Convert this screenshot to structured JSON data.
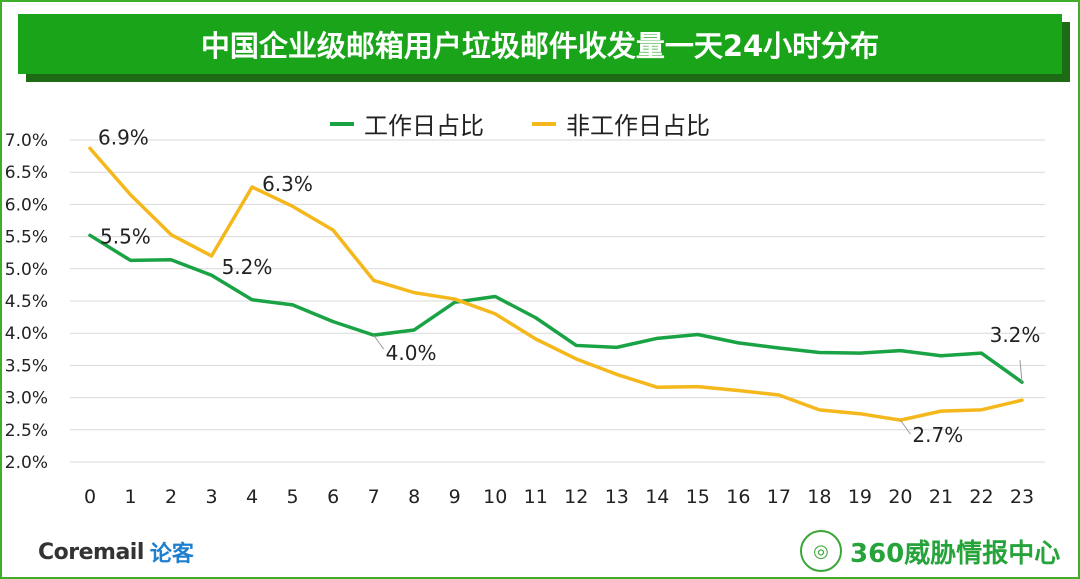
{
  "title": "中国企业级邮箱用户垃圾邮件收发量一天24小时分布",
  "chart_data": {
    "type": "line",
    "x": [
      0,
      1,
      2,
      3,
      4,
      5,
      6,
      7,
      8,
      9,
      10,
      11,
      12,
      13,
      14,
      15,
      16,
      17,
      18,
      19,
      20,
      21,
      22,
      23
    ],
    "ylim": [
      2.0,
      7.0
    ],
    "yticks": [
      "7.0%",
      "6.5%",
      "6.0%",
      "5.5%",
      "5.0%",
      "4.5%",
      "4.0%",
      "3.5%",
      "3.0%",
      "2.5%",
      "2.0%"
    ],
    "grid": true,
    "legend_position": "top",
    "series": [
      {
        "name": "工作日占比",
        "color": "#1aa344",
        "values": [
          5.52,
          5.13,
          5.14,
          4.9,
          4.52,
          4.44,
          4.18,
          3.97,
          4.05,
          4.48,
          4.57,
          4.24,
          3.81,
          3.78,
          3.92,
          3.98,
          3.85,
          3.77,
          3.7,
          3.69,
          3.73,
          3.65,
          3.69,
          3.24
        ]
      },
      {
        "name": "非工作日占比",
        "color": "#f5b81c",
        "values": [
          6.87,
          6.15,
          5.53,
          5.2,
          6.27,
          5.97,
          5.6,
          4.82,
          4.63,
          4.53,
          4.3,
          3.91,
          3.6,
          3.36,
          3.16,
          3.17,
          3.11,
          3.04,
          2.81,
          2.75,
          2.65,
          2.79,
          2.81,
          2.96
        ]
      }
    ],
    "annotations": [
      {
        "series": 1,
        "x": 0,
        "text": "6.9%"
      },
      {
        "series": 0,
        "x": 0,
        "text": "5.5%"
      },
      {
        "series": 1,
        "x": 3,
        "text": "5.2%"
      },
      {
        "series": 1,
        "x": 4,
        "text": "6.3%"
      },
      {
        "series": 0,
        "x": 7,
        "text": "4.0%"
      },
      {
        "series": 1,
        "x": 20,
        "text": "2.7%"
      },
      {
        "series": 0,
        "x": 23,
        "text": "3.2%"
      }
    ]
  },
  "footer": {
    "left_brand": "Coremail",
    "left_brand_cn": "论客",
    "right_brand": "360威胁情报中心",
    "right_emblem": "globe-emblem-icon"
  }
}
